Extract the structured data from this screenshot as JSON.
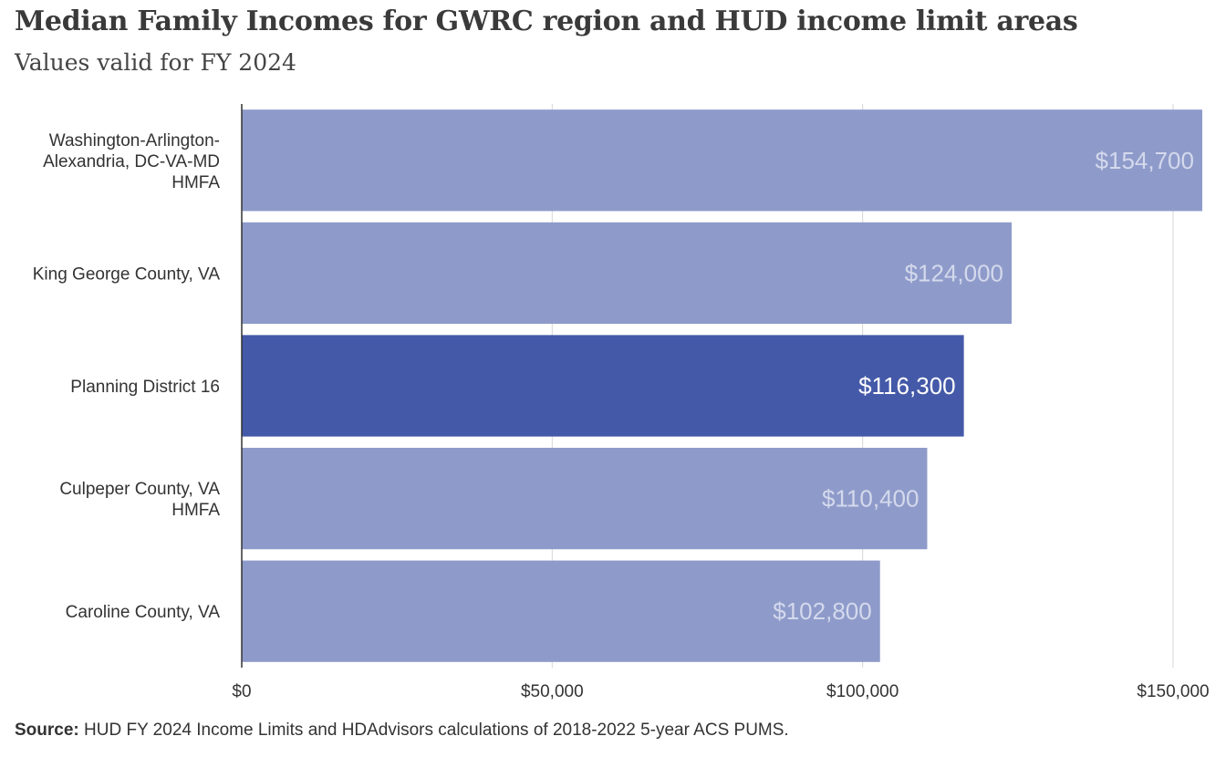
{
  "title": "Median Family Incomes for GWRC region and HUD income limit areas",
  "subtitle": "Values valid for FY 2024",
  "footer": {
    "source_label": "Source:",
    "source_text": " HUD FY 2024 Income Limits and HDAdvisors calculations of 2018-2022 5-year ACS PUMS."
  },
  "colors": {
    "bar": "#8e9bca",
    "bar_highlight": "#4459a8",
    "label_on_bar": "#d4d9ec",
    "label_on_highlight": "#ffffff",
    "grid": "#d6d6d6",
    "axis": "#333333"
  },
  "chart_data": {
    "type": "bar",
    "orientation": "horizontal",
    "title": "Median Family Incomes for GWRC region and HUD income limit areas",
    "subtitle": "Values valid for FY 2024",
    "categories": [
      [
        "Washington-Arlington-",
        "Alexandria, DC-VA-MD",
        "HMFA"
      ],
      [
        "King George County, VA"
      ],
      [
        "Planning District 16"
      ],
      [
        "Culpeper County, VA",
        "HMFA"
      ],
      [
        "Caroline County, VA"
      ]
    ],
    "values": [
      154700,
      124000,
      116300,
      110400,
      102800
    ],
    "value_labels": [
      "$154,700",
      "$124,000",
      "$116,300",
      "$110,400",
      "$102,800"
    ],
    "highlight": [
      false,
      false,
      true,
      false,
      false
    ],
    "xlim": [
      0,
      155000
    ],
    "xticks": [
      0,
      50000,
      100000,
      150000
    ],
    "xtick_labels": [
      "$0",
      "$50,000",
      "$100,000",
      "$150,000"
    ],
    "xlabel": "",
    "ylabel": "",
    "grid": true,
    "legend": "none"
  }
}
